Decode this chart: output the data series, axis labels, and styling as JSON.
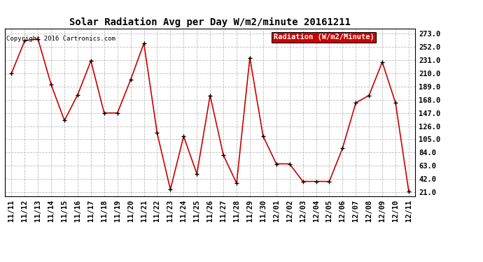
{
  "title": "Solar Radiation Avg per Day W/m2/minute 20161211",
  "copyright_text": "Copyright 2016 Cartronics.com",
  "legend_label": "Radiation (W/m2/Minute)",
  "legend_bg": "#cc0000",
  "legend_text_color": "#ffffff",
  "x_labels": [
    "11/11",
    "11/12",
    "11/13",
    "11/14",
    "11/15",
    "11/16",
    "11/17",
    "11/18",
    "11/19",
    "11/20",
    "11/21",
    "11/22",
    "11/23",
    "11/24",
    "11/25",
    "11/26",
    "11/27",
    "11/28",
    "11/29",
    "11/30",
    "12/01",
    "12/02",
    "12/03",
    "12/04",
    "12/05",
    "12/06",
    "12/07",
    "12/08",
    "12/09",
    "12/10",
    "12/11"
  ],
  "y_values": [
    210,
    262,
    265,
    192,
    135,
    176,
    230,
    147,
    147,
    200,
    258,
    115,
    25,
    110,
    50,
    175,
    80,
    35,
    235,
    110,
    66,
    66,
    38,
    38,
    38,
    91,
    163,
    175,
    228,
    163,
    22
  ],
  "line_color": "#cc0000",
  "marker_color": "#000000",
  "bg_color": "#ffffff",
  "plot_bg_color": "#ffffff",
  "grid_color": "#bbbbbb",
  "yticks": [
    21.0,
    42.0,
    63.0,
    84.0,
    105.0,
    126.0,
    147.0,
    168.0,
    189.0,
    210.0,
    231.0,
    252.0,
    273.0
  ],
  "ylim": [
    14,
    281
  ],
  "title_fontsize": 10,
  "tick_fontsize": 7.5,
  "copyright_fontsize": 6.5
}
